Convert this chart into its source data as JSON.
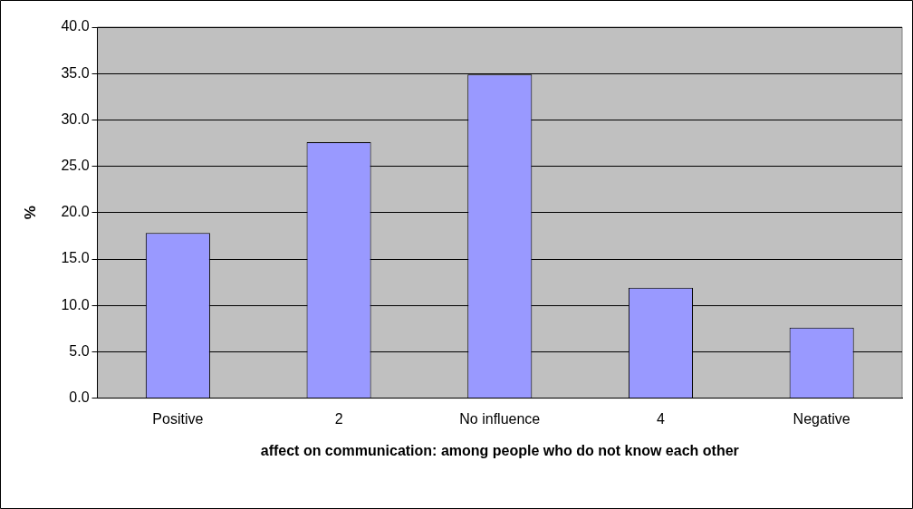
{
  "chart_data": {
    "type": "bar",
    "xlabel": "affect on communication: among people who do not know each other",
    "ylabel": "%",
    "categories": [
      "Positive",
      "2",
      "No influence",
      "4",
      "Negative"
    ],
    "values": [
      17.8,
      27.6,
      34.9,
      11.9,
      7.6
    ],
    "color": "#9999ff",
    "ylim": [
      0,
      40
    ],
    "yticks": [
      {
        "value": 0,
        "label": "0.0"
      },
      {
        "value": 5,
        "label": "5.0"
      },
      {
        "value": 10,
        "label": "10.0"
      },
      {
        "value": 15,
        "label": "15.0"
      },
      {
        "value": 20,
        "label": "20.0"
      },
      {
        "value": 25,
        "label": "25.0"
      },
      {
        "value": 30,
        "label": "30.0"
      },
      {
        "value": 35,
        "label": "35.0"
      },
      {
        "value": 40,
        "label": "40.0"
      }
    ],
    "grid": "y",
    "legend": false
  }
}
